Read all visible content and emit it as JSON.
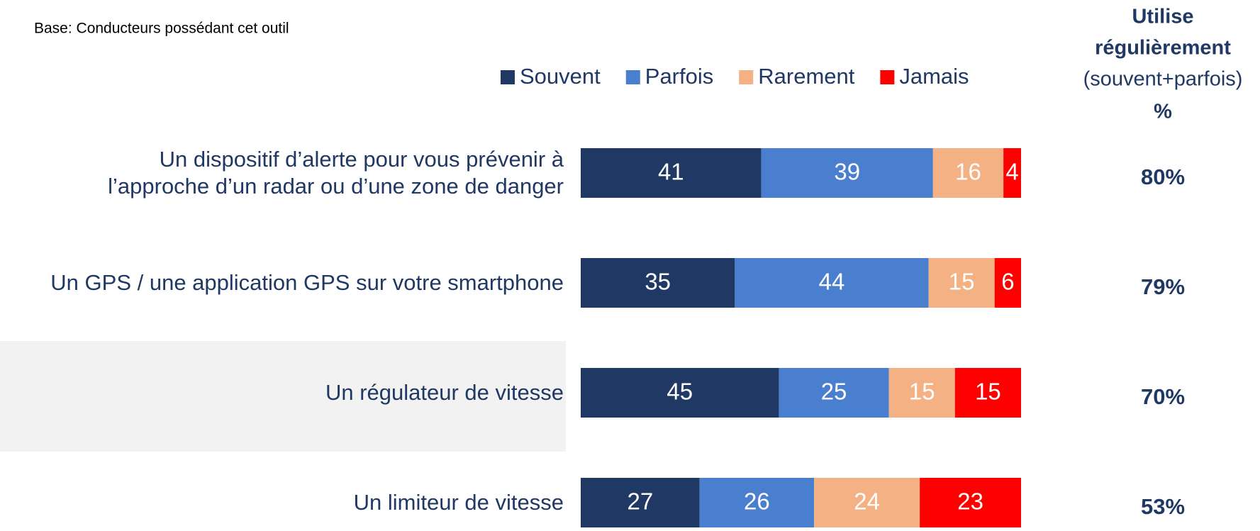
{
  "chart_data": {
    "type": "stacked_bar_horizontal",
    "note": "Base: Conducteurs possédant cet outil",
    "categories": [
      "Un dispositif d’alerte pour vous prévenir à\nl’approche d’un radar ou d’une zone de danger",
      "Un GPS / une application GPS sur votre smartphone",
      "Un régulateur de vitesse",
      "Un limiteur de vitesse"
    ],
    "series": [
      {
        "name": "Souvent",
        "color": "#1f3864",
        "values": [
          41,
          35,
          45,
          27
        ]
      },
      {
        "name": "Parfois",
        "color": "#4a7fcf",
        "values": [
          39,
          44,
          25,
          26
        ]
      },
      {
        "name": "Rarement",
        "color": "#f4b183",
        "values": [
          16,
          15,
          15,
          24
        ]
      },
      {
        "name": "Jamais",
        "color": "#ff0000",
        "values": [
          4,
          6,
          15,
          23
        ]
      }
    ],
    "xlim": [
      0,
      100
    ],
    "legend": "top",
    "regular_use": {
      "header": [
        "Utilise",
        "régulièrement",
        "(souvent+parfois)",
        "%"
      ],
      "values": [
        80,
        79,
        70,
        53
      ],
      "value_labels": [
        "80%",
        "79%",
        "70%",
        "53%"
      ]
    }
  }
}
